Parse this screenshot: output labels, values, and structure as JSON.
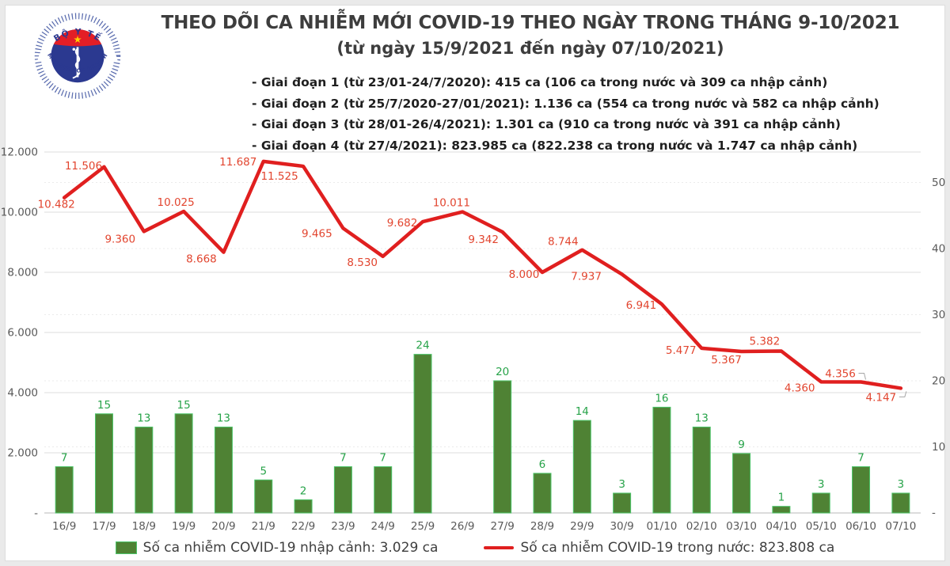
{
  "header": {
    "title": "THEO DÕI CA NHIỄM MỚI COVID-19 THEO NGÀY TRONG THÁNG 9-10/2021",
    "subtitle": "(từ ngày 15/9/2021 đến ngày 07/10/2021)",
    "phases": [
      "- Giai đoạn 1 (từ 23/01-24/7/2020): 415 ca (106 ca trong nước và 309 ca nhập cảnh)",
      "- Giai đoạn 2 (từ 25/7/2020-27/01/2021): 1.136 ca (554 ca trong nước và 582 ca nhập cảnh)",
      "- Giai đoạn 3 (từ 28/01-26/4/2021): 1.301 ca (910 ca trong nước và 391 ca nhập cảnh)",
      "- Giai đoạn 4 (từ 27/4/2021): 823.985 ca (822.238 ca trong nước và 1.747 ca nhập cảnh)"
    ]
  },
  "logo": {
    "top_text": "BỘ Y TẾ",
    "bottom_text": "MINISTRY OF HEALTH"
  },
  "chart_data": {
    "type": "bar+line",
    "title": "THEO DÕI CA NHIỄM MỚI COVID-19 THEO NGÀY TRONG THÁNG 9-10/2021",
    "subtitle": "(từ ngày 15/9/2021 đến ngày 07/10/2021)",
    "categories": [
      "16/9",
      "17/9",
      "18/9",
      "19/9",
      "20/9",
      "21/9",
      "22/9",
      "23/9",
      "24/9",
      "25/9",
      "26/9",
      "27/9",
      "28/9",
      "29/9",
      "30/9",
      "01/10",
      "02/10",
      "03/10",
      "04/10",
      "05/10",
      "06/10",
      "07/10"
    ],
    "series": [
      {
        "name": "Số ca nhiễm COVID-19 nhập cảnh",
        "type": "bar",
        "axis": "right",
        "color": "#4f8234",
        "values": [
          7,
          15,
          13,
          15,
          13,
          5,
          2,
          7,
          7,
          24,
          0,
          20,
          6,
          14,
          3,
          16,
          13,
          9,
          1,
          3,
          7,
          3
        ]
      },
      {
        "name": "Số ca nhiễm COVID-19 trong nước",
        "type": "line",
        "axis": "left",
        "color": "#e01f1f",
        "values": [
          10482,
          11506,
          9360,
          10025,
          8668,
          11687,
          11525,
          9465,
          8530,
          9682,
          10011,
          9342,
          8000,
          8744,
          7937,
          6941,
          5477,
          5367,
          5382,
          4360,
          4356,
          4147
        ]
      }
    ],
    "left_axis": {
      "min": 0,
      "max": 12000,
      "tick_step": 2000,
      "tick_labels": [
        "2.000",
        "4.000",
        "6.000",
        "8.000",
        "10.000",
        "12.000"
      ],
      "zero_label": "-"
    },
    "right_axis": {
      "min": 0,
      "ticks": [
        10,
        20,
        30,
        40,
        50
      ],
      "zero_label": "-"
    },
    "grid": "horizontal",
    "legend_position": "bottom"
  },
  "legend": {
    "items": [
      {
        "label": "Số ca nhiễm COVID-19 nhập cảnh: 3.029 ca",
        "swatch": "bar",
        "color": "#4f8234"
      },
      {
        "label": "Số ca nhiễm COVID-19 trong nước: 823.808 ca",
        "swatch": "line",
        "color": "#e01f1f"
      }
    ]
  },
  "colors": {
    "line_red": "#e01f1f",
    "line_label_red": "#e2452f",
    "bar_green": "#4f8234",
    "bar_border_green": "#4cc469",
    "bar_label_green": "#27a349",
    "grid": "#dcdcdc",
    "grid_dashed": "#ebebeb",
    "axis_line": "#c6c6c6",
    "tick_text": "#595959",
    "navy": "#2b3990",
    "logo_red": "#e31e26",
    "star_yellow": "#ffd200"
  }
}
